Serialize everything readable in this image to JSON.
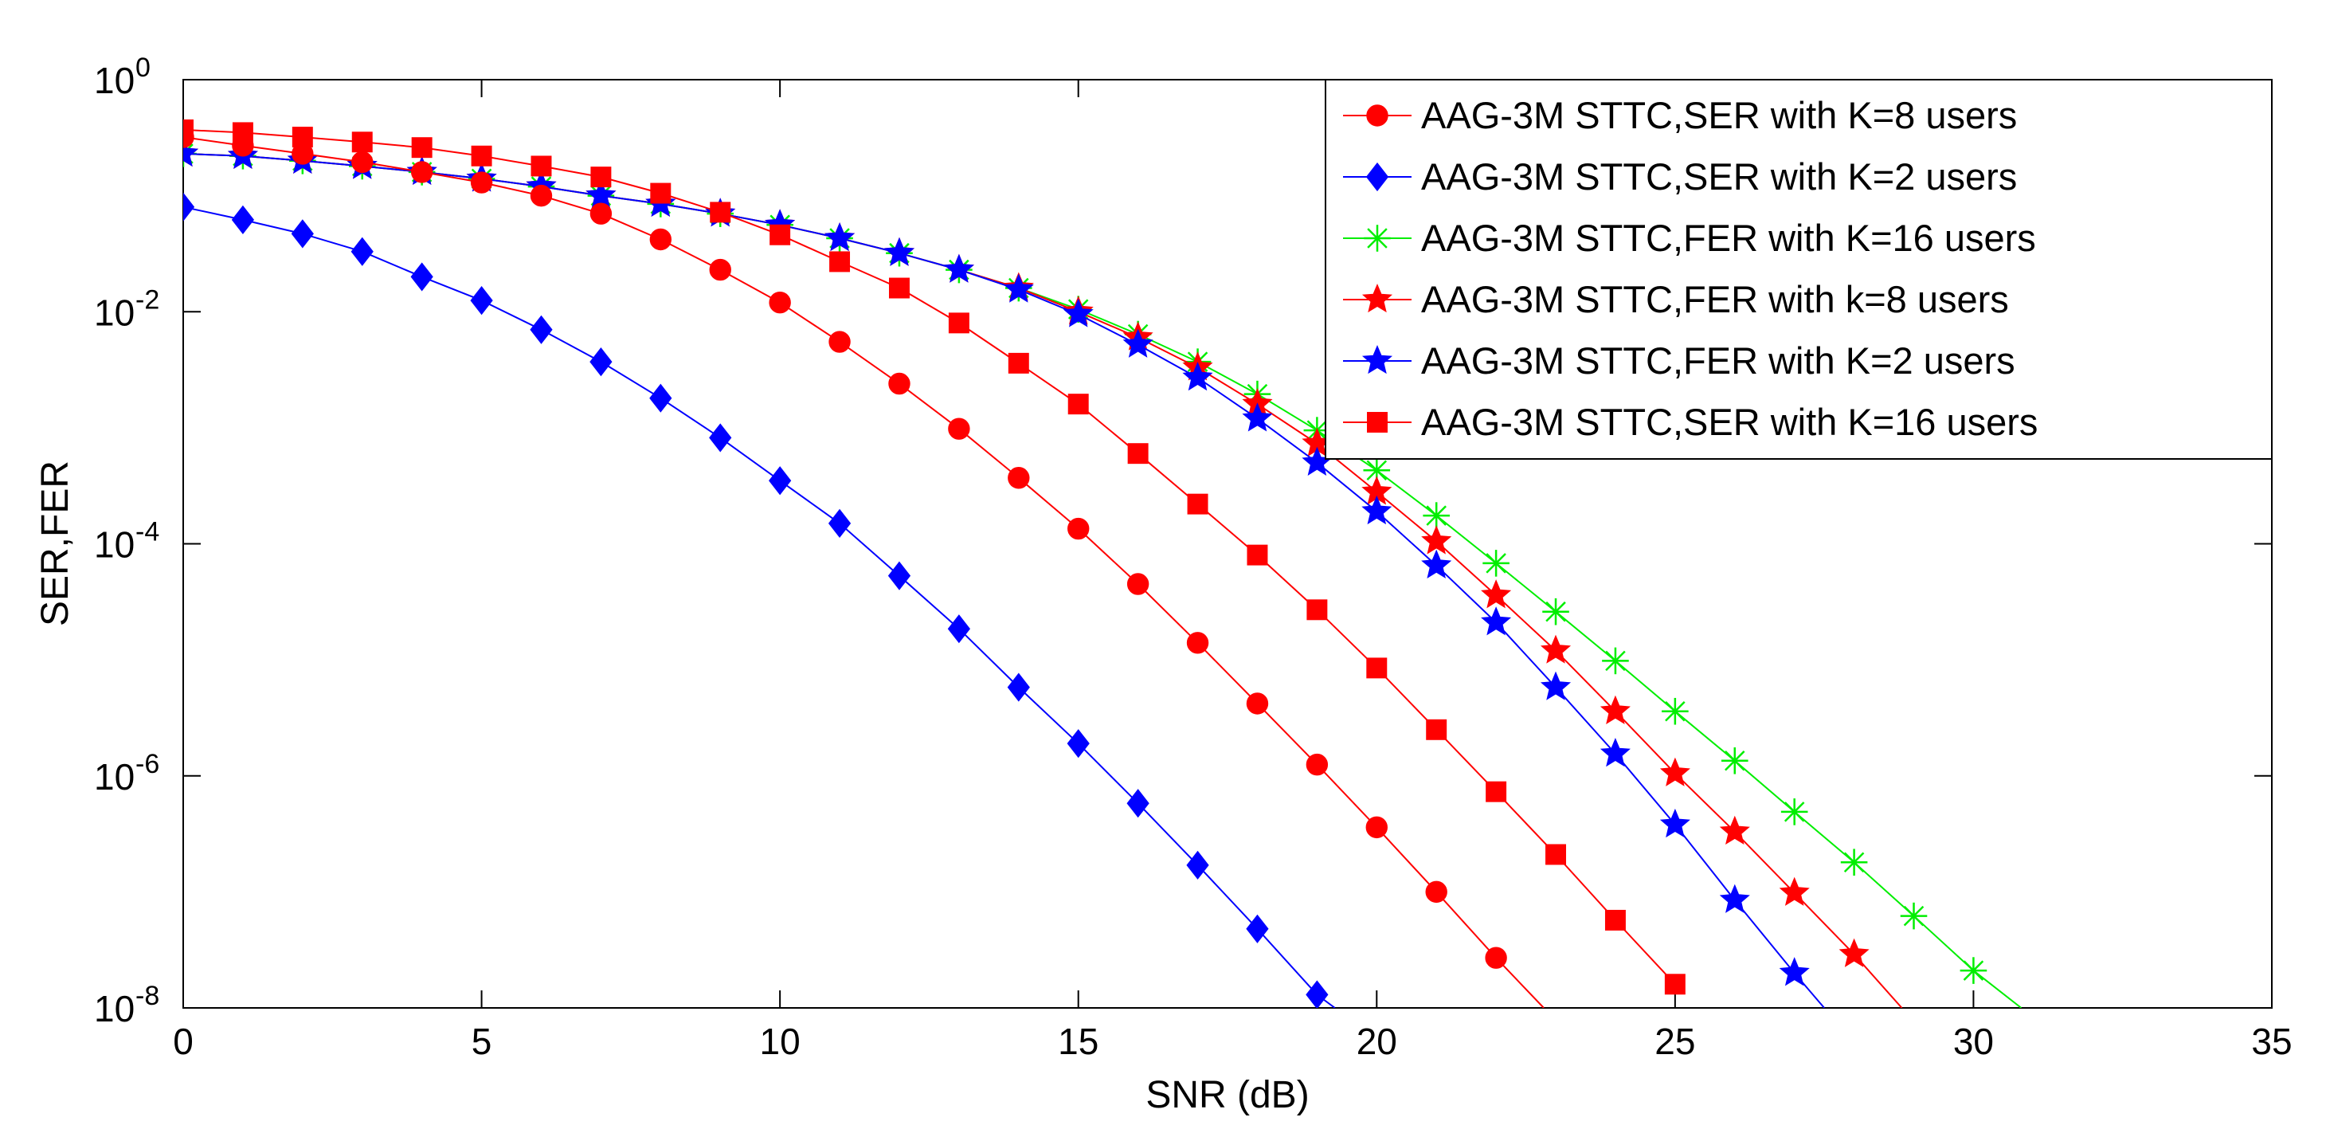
{
  "chart_data": {
    "type": "line",
    "yscale": "log",
    "xlabel": "SNR (dB)",
    "ylabel": "SER,FER",
    "xlim": [
      0,
      35
    ],
    "ylim": [
      1e-08,
      1
    ],
    "xticks": [
      0,
      5,
      10,
      15,
      20,
      25,
      30,
      35
    ],
    "yticks": [
      {
        "base": "10",
        "exp": "0"
      },
      {
        "base": "10",
        "exp": "-2"
      },
      {
        "base": "10",
        "exp": "-4"
      },
      {
        "base": "10",
        "exp": "-6"
      },
      {
        "base": "10",
        "exp": "-8"
      }
    ],
    "legend_position": "top-right",
    "series": [
      {
        "name": "AAG-3M STTC,SER with K=8 users",
        "color": "#ff0000",
        "marker": "circle",
        "x_start": 0,
        "x_end": 22.8,
        "y": [
          0.32,
          0.27,
          0.23,
          0.195,
          0.16,
          0.13,
          0.1,
          0.07,
          0.042,
          0.023,
          0.012,
          0.0055,
          0.0024,
          0.00098,
          0.00037,
          0.000135,
          4.5e-05,
          1.4e-05,
          4.2e-06,
          1.25e-06,
          3.6e-07,
          1e-07,
          2.7e-08,
          1e-08
        ]
      },
      {
        "name": "AAG-3M STTC,SER with K=2 users",
        "color": "#0000ff",
        "marker": "diamond",
        "x_start": 0,
        "x_end": 19.3,
        "y": [
          0.08,
          0.062,
          0.047,
          0.033,
          0.02,
          0.0125,
          0.007,
          0.0037,
          0.0018,
          0.00082,
          0.00035,
          0.00015,
          5.3e-05,
          1.85e-05,
          5.8e-06,
          1.9e-06,
          5.8e-07,
          1.7e-07,
          4.8e-08,
          1.3e-08,
          1e-08
        ]
      },
      {
        "name": "AAG-3M STTC,FER with K=16 users",
        "color": "#00ee00",
        "marker": "asterisk",
        "x_start": 0,
        "x_end": 30.8,
        "y": [
          0.23,
          0.22,
          0.2,
          0.18,
          0.16,
          0.14,
          0.12,
          0.1,
          0.085,
          0.07,
          0.056,
          0.043,
          0.032,
          0.023,
          0.016,
          0.0105,
          0.0064,
          0.0037,
          0.00195,
          0.00095,
          0.00043,
          0.000175,
          6.8e-05,
          2.6e-05,
          9.8e-06,
          3.6e-06,
          1.35e-06,
          4.9e-07,
          1.8e-07,
          6.2e-08,
          2.1e-08,
          1e-08
        ]
      },
      {
        "name": "AAG-3M STTC,FER with k=8 users",
        "color": "#ff0000",
        "marker": "star",
        "x_start": 0,
        "x_end": 28.8,
        "y": [
          0.23,
          0.22,
          0.2,
          0.18,
          0.16,
          0.14,
          0.12,
          0.1,
          0.085,
          0.07,
          0.056,
          0.043,
          0.032,
          0.023,
          0.016,
          0.01,
          0.006,
          0.0033,
          0.0016,
          0.00073,
          0.00028,
          0.000105,
          3.6e-05,
          1.2e-05,
          3.6e-06,
          1.05e-06,
          3.3e-07,
          9.8e-08,
          2.9e-08,
          1e-08
        ]
      },
      {
        "name": "AAG-3M STTC,FER with K=2 users",
        "color": "#0000ff",
        "marker": "star",
        "x_start": 0,
        "x_end": 27.5,
        "y": [
          0.23,
          0.22,
          0.2,
          0.18,
          0.16,
          0.14,
          0.12,
          0.1,
          0.085,
          0.07,
          0.056,
          0.043,
          0.032,
          0.023,
          0.0155,
          0.0095,
          0.0052,
          0.0027,
          0.0012,
          0.0005,
          0.00019,
          6.5e-05,
          2.1e-05,
          5.8e-06,
          1.55e-06,
          3.8e-07,
          8.5e-08,
          2e-08,
          1e-08
        ]
      },
      {
        "name": "AAG-3M STTC,SER with K=16 users",
        "color": "#ff0000",
        "marker": "square",
        "x_start": 0,
        "x_end": 25,
        "y": [
          0.37,
          0.35,
          0.32,
          0.29,
          0.26,
          0.22,
          0.18,
          0.145,
          0.105,
          0.072,
          0.046,
          0.027,
          0.016,
          0.008,
          0.0036,
          0.0016,
          0.0006,
          0.00022,
          8e-05,
          2.7e-05,
          8.5e-06,
          2.5e-06,
          7.3e-07,
          2.1e-07,
          5.7e-08,
          1.6e-08
        ]
      }
    ]
  }
}
